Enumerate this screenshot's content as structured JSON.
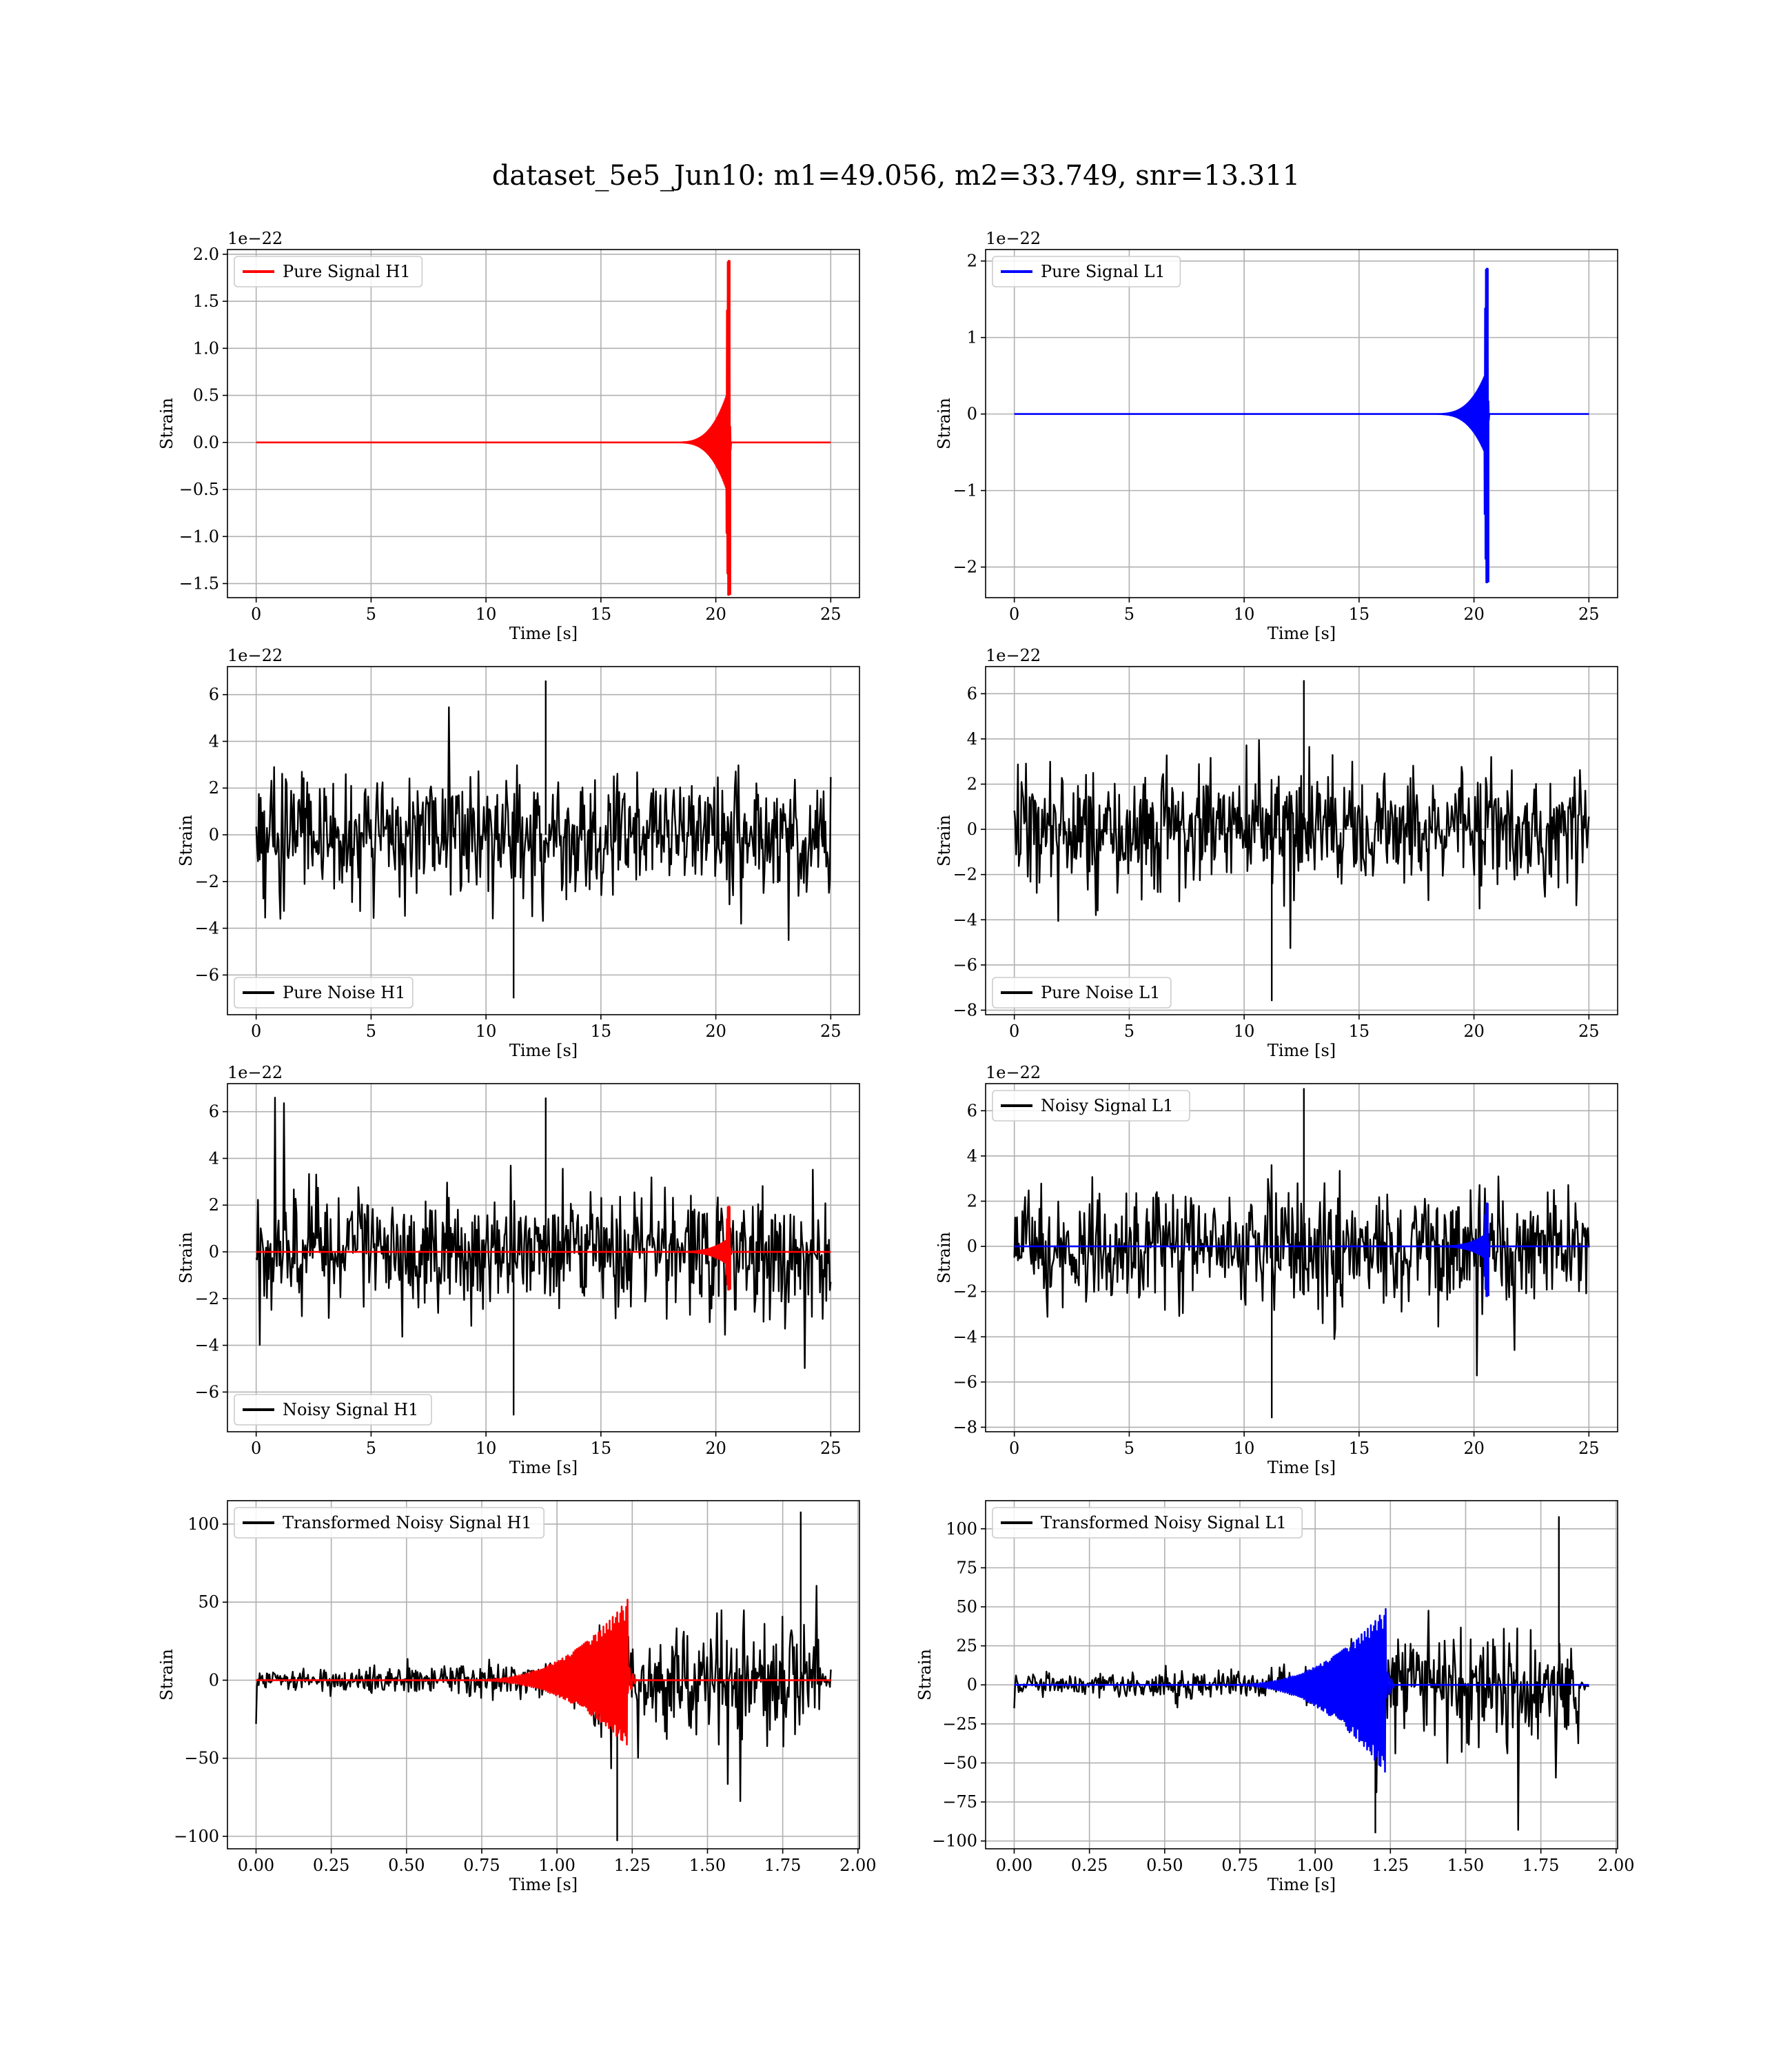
{
  "figure": {
    "title": "dataset_5e5_Jun10: m1=49.056, m2=33.749, snr=13.311"
  },
  "colors": {
    "h1_signal": "#ff0000",
    "l1_signal": "#0000ff",
    "noise": "#000000",
    "grid": "#b0b0b0"
  },
  "chart_data": [
    {
      "id": "pure-signal-h1",
      "type": "line",
      "xlabel": "Time [s]",
      "ylabel": "Strain",
      "offset_text": "1e−22",
      "xlim": [
        -1.25,
        26.25
      ],
      "ylim": [
        -1.65,
        2.05
      ],
      "xticks": [
        0,
        5,
        10,
        15,
        20,
        25
      ],
      "xtick_labels": [
        "0",
        "5",
        "10",
        "15",
        "20",
        "25"
      ],
      "yticks": [
        -1.5,
        -1.0,
        -0.5,
        0.0,
        0.5,
        1.0,
        1.5,
        2.0
      ],
      "ytick_labels": [
        "−1.5",
        "−1.0",
        "−0.5",
        "0.0",
        "0.5",
        "1.0",
        "1.5",
        "2.0"
      ],
      "grid": true,
      "legend_loc": "upper left",
      "series": [
        {
          "name": "Pure Signal H1",
          "color": "#ff0000",
          "kind": "chirp",
          "t_start": 0,
          "t_end": 25,
          "t_merger": 20.6,
          "peak_pos": 1.93,
          "peak_neg": -1.62,
          "pre_merger_amp": 0.6,
          "noise_sigma": 0
        }
      ]
    },
    {
      "id": "pure-signal-l1",
      "type": "line",
      "xlabel": "Time [s]",
      "ylabel": "Strain",
      "offset_text": "1e−22",
      "xlim": [
        -1.25,
        26.25
      ],
      "ylim": [
        -2.4,
        2.15
      ],
      "xticks": [
        0,
        5,
        10,
        15,
        20,
        25
      ],
      "xtick_labels": [
        "0",
        "5",
        "10",
        "15",
        "20",
        "25"
      ],
      "yticks": [
        -2,
        -1,
        0,
        1,
        2
      ],
      "ytick_labels": [
        "−2",
        "−1",
        "0",
        "1",
        "2"
      ],
      "grid": true,
      "legend_loc": "upper left",
      "series": [
        {
          "name": "Pure Signal L1",
          "color": "#0000ff",
          "kind": "chirp",
          "t_start": 0,
          "t_end": 25,
          "t_merger": 20.6,
          "peak_pos": 1.9,
          "peak_neg": -2.2,
          "pre_merger_amp": 0.6,
          "noise_sigma": 0
        }
      ]
    },
    {
      "id": "pure-noise-h1",
      "type": "line",
      "xlabel": "Time [s]",
      "ylabel": "Strain",
      "offset_text": "1e−22",
      "xlim": [
        -1.25,
        26.25
      ],
      "ylim": [
        -7.7,
        7.2
      ],
      "xticks": [
        0,
        5,
        10,
        15,
        20,
        25
      ],
      "xtick_labels": [
        "0",
        "5",
        "10",
        "15",
        "20",
        "25"
      ],
      "yticks": [
        -6,
        -4,
        -2,
        0,
        2,
        4,
        6
      ],
      "ytick_labels": [
        "−6",
        "−4",
        "−2",
        "0",
        "2",
        "4",
        "6"
      ],
      "grid": true,
      "legend_loc": "lower left",
      "series": [
        {
          "name": "Pure Noise H1",
          "color": "#000000",
          "kind": "noise",
          "t_start": 0,
          "t_end": 25,
          "noise_sigma": 1.3,
          "max": 6.6,
          "min": -7.0
        }
      ]
    },
    {
      "id": "pure-noise-l1",
      "type": "line",
      "xlabel": "Time [s]",
      "ylabel": "Strain",
      "offset_text": "1e−22",
      "xlim": [
        -1.25,
        26.25
      ],
      "ylim": [
        -8.2,
        7.2
      ],
      "xticks": [
        0,
        5,
        10,
        15,
        20,
        25
      ],
      "xtick_labels": [
        "0",
        "5",
        "10",
        "15",
        "20",
        "25"
      ],
      "yticks": [
        -8,
        -6,
        -4,
        -2,
        0,
        2,
        4,
        6
      ],
      "ytick_labels": [
        "−8",
        "−6",
        "−4",
        "−2",
        "0",
        "2",
        "4",
        "6"
      ],
      "grid": true,
      "legend_loc": "lower left",
      "series": [
        {
          "name": "Pure Noise L1",
          "color": "#000000",
          "kind": "noise",
          "t_start": 0,
          "t_end": 25,
          "noise_sigma": 1.3,
          "max": 6.6,
          "min": -7.6
        }
      ]
    },
    {
      "id": "noisy-signal-h1",
      "type": "line",
      "xlabel": "Time [s]",
      "ylabel": "Strain",
      "offset_text": "1e−22",
      "xlim": [
        -1.25,
        26.25
      ],
      "ylim": [
        -7.7,
        7.2
      ],
      "xticks": [
        0,
        5,
        10,
        15,
        20,
        25
      ],
      "xtick_labels": [
        "0",
        "5",
        "10",
        "15",
        "20",
        "25"
      ],
      "yticks": [
        -6,
        -4,
        -2,
        0,
        2,
        4,
        6
      ],
      "ytick_labels": [
        "−6",
        "−4",
        "−2",
        "0",
        "2",
        "4",
        "6"
      ],
      "grid": true,
      "legend_loc": "lower left",
      "series": [
        {
          "name": "Noisy Signal H1",
          "color": "#000000",
          "kind": "noise",
          "t_start": 0,
          "t_end": 25,
          "noise_sigma": 1.3,
          "max": 6.6,
          "min": -7.0
        },
        {
          "name": "",
          "color": "#ff0000",
          "kind": "chirp",
          "t_start": 0,
          "t_end": 25,
          "t_merger": 20.6,
          "peak_pos": 1.93,
          "peak_neg": -1.62,
          "pre_merger_amp": 0.6,
          "noise_sigma": 0
        }
      ]
    },
    {
      "id": "noisy-signal-l1",
      "type": "line",
      "xlabel": "Time [s]",
      "ylabel": "Strain",
      "offset_text": "1e−22",
      "xlim": [
        -1.25,
        26.25
      ],
      "ylim": [
        -8.2,
        7.2
      ],
      "xticks": [
        0,
        5,
        10,
        15,
        20,
        25
      ],
      "xtick_labels": [
        "0",
        "5",
        "10",
        "15",
        "20",
        "25"
      ],
      "yticks": [
        -8,
        -6,
        -4,
        -2,
        0,
        2,
        4,
        6
      ],
      "ytick_labels": [
        "−8",
        "−6",
        "−4",
        "−2",
        "0",
        "2",
        "4",
        "6"
      ],
      "grid": true,
      "legend_loc": "upper left",
      "series": [
        {
          "name": "Noisy Signal L1",
          "color": "#000000",
          "kind": "noise",
          "t_start": 0,
          "t_end": 25,
          "noise_sigma": 1.3,
          "max": 7.0,
          "min": -7.6
        },
        {
          "name": "",
          "color": "#0000ff",
          "kind": "chirp",
          "t_start": 0,
          "t_end": 25,
          "t_merger": 20.6,
          "peak_pos": 1.9,
          "peak_neg": -2.2,
          "pre_merger_amp": 0.6,
          "noise_sigma": 0
        }
      ]
    },
    {
      "id": "transformed-noisy-signal-h1",
      "type": "line",
      "xlabel": "Time [s]",
      "ylabel": "Strain",
      "offset_text": "",
      "xlim": [
        -0.095,
        2.005
      ],
      "ylim": [
        -108,
        115
      ],
      "xticks": [
        0,
        0.25,
        0.5,
        0.75,
        1.0,
        1.25,
        1.5,
        1.75,
        2.0
      ],
      "xtick_labels": [
        "0.00",
        "0.25",
        "0.50",
        "0.75",
        "1.00",
        "1.25",
        "1.50",
        "1.75",
        "2.00"
      ],
      "yticks": [
        -100,
        -50,
        0,
        50,
        100
      ],
      "ytick_labels": [
        "−100",
        "−50",
        "0",
        "50",
        "100"
      ],
      "grid": true,
      "legend_loc": "upper left",
      "series": [
        {
          "name": "Transformed Noisy Signal H1",
          "color": "#000000",
          "kind": "transformed_noise",
          "t_start": 0,
          "t_end": 1.91,
          "t_jump": 1.12,
          "t_cut": 1.875,
          "amp_early": 7,
          "amp_late": 35,
          "max": 108,
          "min": -103,
          "start_spike": -28
        },
        {
          "name": "",
          "color": "#ff0000",
          "kind": "transformed_chirp",
          "t_start": 0,
          "t_end": 1.91,
          "t_merger": 1.235,
          "peak_pos": 52,
          "peak_neg": -43
        }
      ]
    },
    {
      "id": "transformed-noisy-signal-l1",
      "type": "line",
      "xlabel": "Time [s]",
      "ylabel": "Strain",
      "offset_text": "",
      "xlim": [
        -0.095,
        2.005
      ],
      "ylim": [
        -105,
        118
      ],
      "xticks": [
        0,
        0.25,
        0.5,
        0.75,
        1.0,
        1.25,
        1.5,
        1.75,
        2.0
      ],
      "xtick_labels": [
        "0.00",
        "0.25",
        "0.50",
        "0.75",
        "1.00",
        "1.25",
        "1.50",
        "1.75",
        "2.00"
      ],
      "yticks": [
        -100,
        -75,
        -50,
        -25,
        0,
        25,
        50,
        75,
        100
      ],
      "ytick_labels": [
        "−100",
        "−75",
        "−50",
        "−25",
        "0",
        "25",
        "50",
        "75",
        "100"
      ],
      "grid": true,
      "legend_loc": "upper left",
      "series": [
        {
          "name": "Transformed Noisy Signal L1",
          "color": "#000000",
          "kind": "transformed_noise",
          "t_start": 0,
          "t_end": 1.91,
          "t_jump": 1.1,
          "t_cut": 1.875,
          "amp_early": 7,
          "amp_late": 33,
          "max": 108,
          "min": -95,
          "start_spike": -15
        },
        {
          "name": "",
          "color": "#0000ff",
          "kind": "transformed_chirp",
          "t_start": 0,
          "t_end": 1.91,
          "t_merger": 1.235,
          "peak_pos": 49,
          "peak_neg": -58
        }
      ]
    }
  ]
}
